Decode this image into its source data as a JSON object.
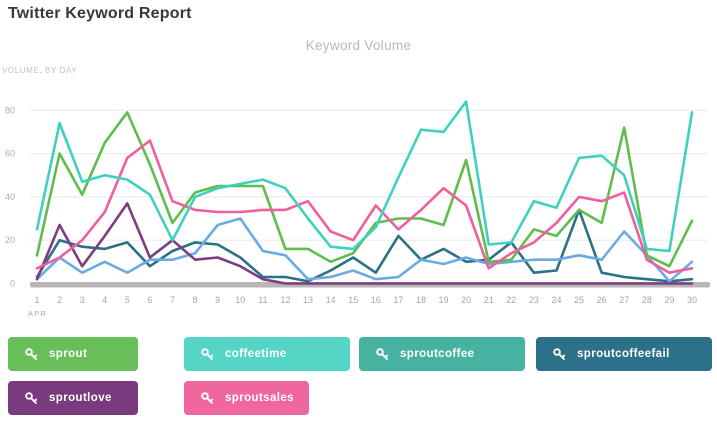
{
  "page": {
    "title": "Twitter Keyword Report"
  },
  "chart": {
    "title": "Keyword Volume",
    "axis_caption": "VOLUME, BY DAY",
    "month_label": "APR"
  },
  "chart_data": {
    "type": "line",
    "title": "Keyword Volume",
    "xlabel": "APR (day of month)",
    "ylabel": "VOLUME, BY DAY",
    "ylim": [
      0,
      90
    ],
    "yticks": [
      0,
      20,
      40,
      60,
      80
    ],
    "grid": true,
    "legend_position": "bottom",
    "x": [
      1,
      2,
      3,
      4,
      5,
      6,
      7,
      8,
      9,
      10,
      11,
      12,
      13,
      14,
      15,
      16,
      17,
      18,
      19,
      20,
      21,
      22,
      23,
      24,
      25,
      26,
      27,
      28,
      29,
      30
    ],
    "series": [
      {
        "name": "sprout",
        "color": "#5fbd4d",
        "values": [
          13,
          60,
          41,
          65,
          79,
          55,
          28,
          42,
          45,
          45,
          45,
          16,
          16,
          10,
          14,
          28,
          30,
          30,
          27,
          57,
          10,
          11,
          25,
          22,
          34,
          28,
          72,
          13,
          8,
          29
        ]
      },
      {
        "name": "coffeetime",
        "color": "#3fd1c0",
        "values": [
          25,
          74,
          47,
          50,
          48,
          41,
          20,
          40,
          44,
          46,
          48,
          44,
          30,
          17,
          16,
          26,
          49,
          71,
          70,
          84,
          18,
          19,
          38,
          35,
          58,
          59,
          50,
          16,
          15,
          79
        ]
      },
      {
        "name": "sproutcoffee",
        "color": "#6aabe4",
        "values": [
          2,
          12,
          5,
          10,
          5,
          11,
          11,
          14,
          27,
          30,
          15,
          13,
          2,
          3,
          6,
          2,
          3,
          11,
          9,
          12,
          9,
          10,
          11,
          11,
          13,
          11,
          24,
          13,
          1,
          10
        ]
      },
      {
        "name": "sproutcoffeefail",
        "color": "#2d7187",
        "values": [
          3,
          20,
          17,
          16,
          19,
          8,
          15,
          19,
          18,
          12,
          3,
          3,
          1,
          6,
          12,
          5,
          22,
          11,
          16,
          10,
          11,
          19,
          5,
          6,
          34,
          5,
          3,
          2,
          1,
          2
        ]
      },
      {
        "name": "sproutlove",
        "color": "#7c3d81",
        "values": [
          2,
          27,
          8,
          22,
          37,
          12,
          20,
          11,
          12,
          8,
          2,
          0,
          0,
          0,
          0,
          0,
          0,
          0,
          0,
          0,
          0,
          0,
          0,
          0,
          0,
          0,
          0,
          0,
          0,
          0
        ]
      },
      {
        "name": "sproutsales",
        "color": "#f05f9d",
        "values": [
          7,
          12,
          20,
          33,
          58,
          66,
          38,
          34,
          33,
          33,
          34,
          34,
          38,
          24,
          20,
          36,
          25,
          34,
          44,
          36,
          7,
          14,
          19,
          28,
          40,
          38,
          42,
          11,
          5,
          7
        ]
      }
    ]
  },
  "legend": {
    "buttons": [
      {
        "label": "sprout",
        "color": "#68be58"
      },
      {
        "label": "coffeetime",
        "color": "#54d5c5"
      },
      {
        "label": "sproutcoffee",
        "color": "#47b2a1"
      },
      {
        "label": "sproutcoffeefail",
        "color": "#2d7089"
      },
      {
        "label": "sproutlove",
        "color": "#7a3a7e"
      },
      {
        "label": "sproutsales",
        "color": "#f0679e"
      }
    ]
  }
}
